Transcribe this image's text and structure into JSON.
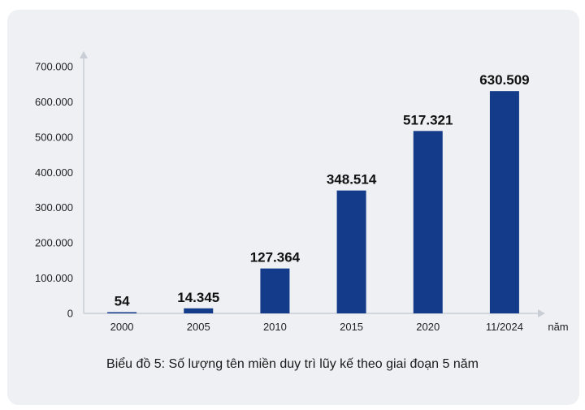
{
  "chart_data": {
    "type": "bar",
    "categories": [
      "2000",
      "2005",
      "2010",
      "2015",
      "2020",
      "11/2024"
    ],
    "values": [
      54,
      14345,
      127364,
      348514,
      517321,
      630509
    ],
    "value_labels": [
      "54",
      "14.345",
      "127.364",
      "348.514",
      "517.321",
      "630.509"
    ],
    "y_ticks": [
      0,
      100000,
      200000,
      300000,
      400000,
      500000,
      600000,
      700000
    ],
    "y_tick_labels": [
      "0",
      "100.000",
      "200.000",
      "300.000",
      "400.000",
      "500.000",
      "600.000",
      "700.000"
    ],
    "ylim": [
      0,
      700000
    ],
    "xlabel": "năm",
    "ylabel": "",
    "title": "Biểu đồ 5: Số lượng tên miền duy trì lũy kế theo giai đoạn 5 năm",
    "grid": false,
    "legend": "none",
    "bar_color": "#143a8a",
    "axis_color": "#c9ced6"
  }
}
